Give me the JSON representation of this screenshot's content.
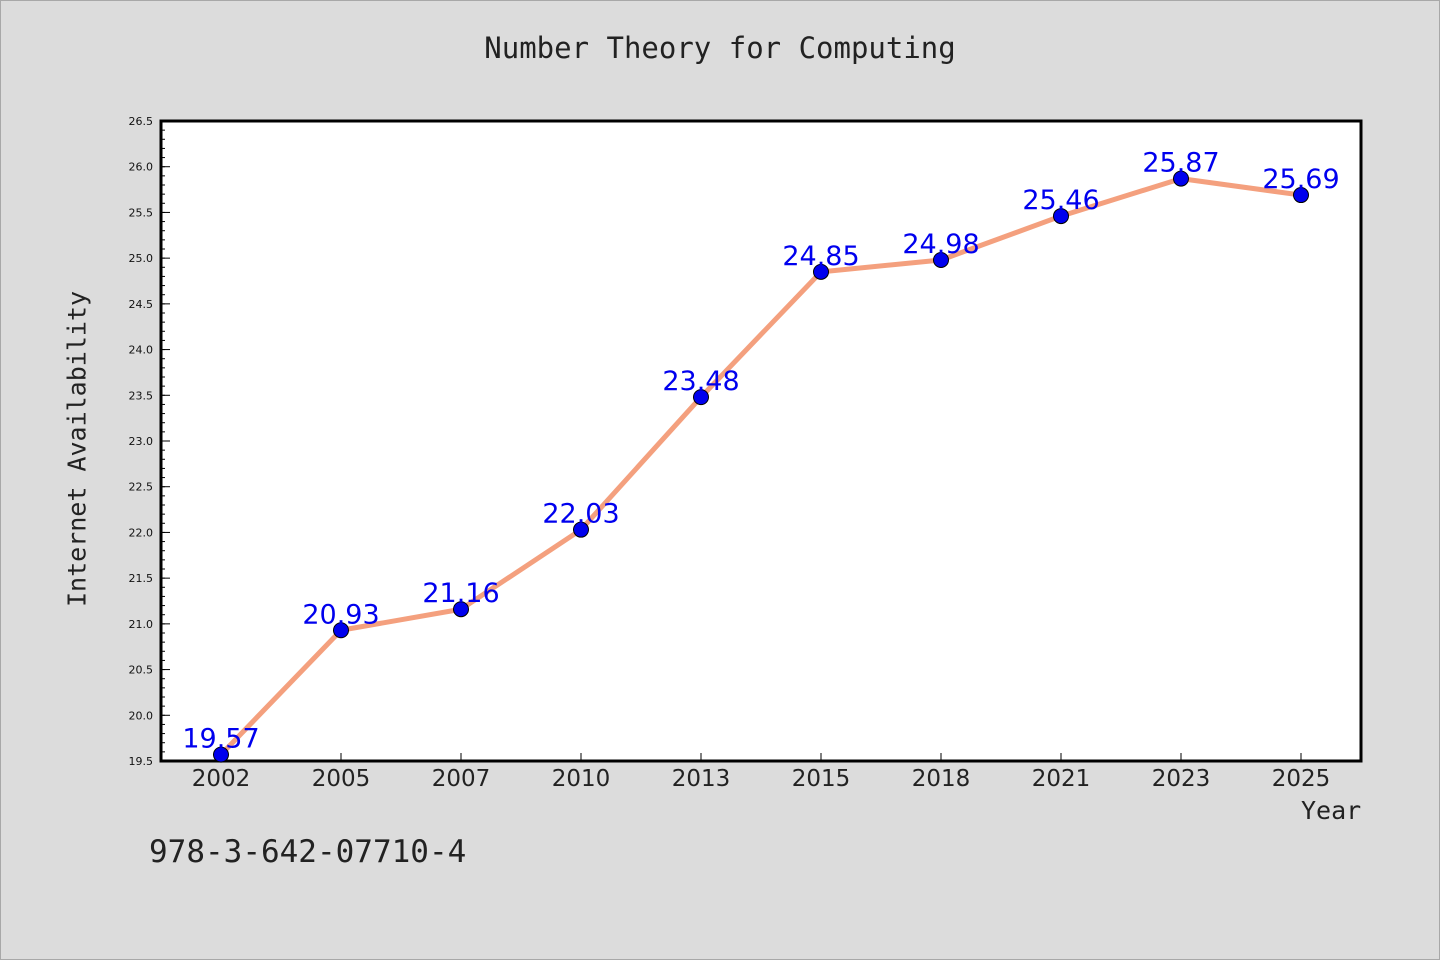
{
  "chart_data": {
    "type": "line",
    "title": "Number Theory for Computing",
    "xlabel": "Year",
    "ylabel": "Internet Availability",
    "categories": [
      "2002",
      "2005",
      "2007",
      "2010",
      "2013",
      "2015",
      "2018",
      "2021",
      "2023",
      "2025"
    ],
    "series": [
      {
        "values": [
          19.57,
          20.93,
          21.16,
          22.03,
          23.48,
          24.85,
          24.98,
          25.46,
          25.87,
          25.69
        ],
        "data_labels": [
          "19.57",
          "20.93",
          "21.16",
          "22.03",
          "23.48",
          "24.85",
          "24.98",
          "25.46",
          "25.87",
          "25.69"
        ],
        "line_color": "#f4a07e",
        "marker_color": "#0000ee",
        "label_color": "#0000ee"
      }
    ],
    "ylim": [
      19.5,
      26.5
    ],
    "yticks": [
      "19.5",
      "20.0",
      "20.5",
      "21.0",
      "21.5",
      "22.0",
      "22.5",
      "23.0",
      "23.5",
      "24.0",
      "24.5",
      "25.0",
      "25.5",
      "26.0",
      "26.5"
    ],
    "grid": false,
    "legend": "none",
    "background_color": "#dcdcdc",
    "plot_background_color": "#ffffff"
  },
  "annotation": {
    "isbn": "978-3-642-07710-4"
  }
}
